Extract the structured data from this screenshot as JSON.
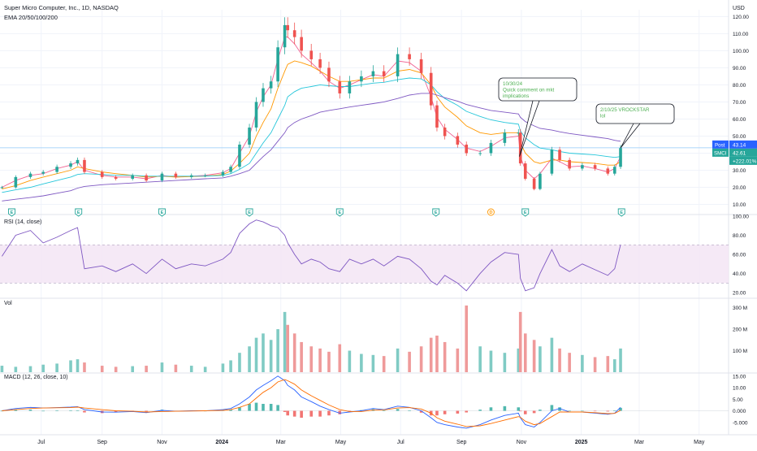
{
  "header": {
    "symbol_line": "Super Micro Computer, Inc., 1D, NASDAQ",
    "indicator_line": "EMA 20/50/100/200",
    "currency": "USD"
  },
  "price_scale": {
    "ticks": [
      10,
      20,
      30,
      40,
      50,
      60,
      70,
      80,
      90,
      100,
      110,
      120
    ],
    "tick_labels": [
      "10.00",
      "20.00",
      "30.00",
      "40.00",
      "50.00",
      "60.00",
      "70.00",
      "80.00",
      "90.00",
      "100.00",
      "110.00",
      "120.00"
    ],
    "range": [
      5,
      124
    ]
  },
  "price_badges": {
    "post_label": "Post",
    "post_value": "43.14",
    "symbol": "SMCI",
    "last_value": "42.61",
    "change_pct": "+222.01%",
    "horizontal_line_value": 43.14
  },
  "annotations": [
    {
      "date": "10/30/24",
      "text": "10/30/24\nQuick comment on mkt\nimplications",
      "anchor_date": "2024-10-30",
      "anchor_price": 38
    },
    {
      "date": "2/10/25",
      "text": "2/10/25 VROCKSTAR\nlol",
      "anchor_date": "2025-02-10",
      "anchor_price": 43
    }
  ],
  "earnings_markers": [
    {
      "date": "2023-06-01",
      "label": "E"
    },
    {
      "date": "2023-08-08",
      "label": "E"
    },
    {
      "date": "2023-11-01",
      "label": "E"
    },
    {
      "date": "2024-01-29",
      "label": "E"
    },
    {
      "date": "2024-04-30",
      "label": "E"
    },
    {
      "date": "2024-08-06",
      "label": "E"
    },
    {
      "date": "2024-10-01",
      "label": "D"
    },
    {
      "date": "2024-11-05",
      "label": "E"
    },
    {
      "date": "2025-02-11",
      "label": "E"
    }
  ],
  "chart_data": {
    "type": "line",
    "x_axis_labels": [
      "Jul",
      "Sep",
      "Nov",
      "2024",
      "Mar",
      "May",
      "Jul",
      "Sep",
      "Nov",
      "2025",
      "Mar",
      "May"
    ],
    "x_range": [
      "2023-05-20",
      "2025-05-31"
    ],
    "price_series": {
      "dates": [
        "2023-05-22",
        "2023-06-05",
        "2023-06-20",
        "2023-07-03",
        "2023-07-17",
        "2023-07-31",
        "2023-08-07",
        "2023-08-14",
        "2023-09-01",
        "2023-09-15",
        "2023-10-02",
        "2023-10-16",
        "2023-11-01",
        "2023-11-15",
        "2023-12-01",
        "2023-12-15",
        "2024-01-02",
        "2024-01-10",
        "2024-01-19",
        "2024-01-29",
        "2024-02-05",
        "2024-02-12",
        "2024-02-20",
        "2024-02-27",
        "2024-03-05",
        "2024-03-08",
        "2024-03-15",
        "2024-03-22",
        "2024-04-01",
        "2024-04-10",
        "2024-04-19",
        "2024-04-30",
        "2024-05-10",
        "2024-05-22",
        "2024-06-03",
        "2024-06-14",
        "2024-06-28",
        "2024-07-10",
        "2024-07-22",
        "2024-08-01",
        "2024-08-07",
        "2024-08-15",
        "2024-08-28",
        "2024-09-06",
        "2024-09-20",
        "2024-10-01",
        "2024-10-15",
        "2024-10-29",
        "2024-10-31",
        "2024-11-05",
        "2024-11-14",
        "2024-11-20",
        "2024-12-02",
        "2024-12-10",
        "2024-12-20",
        "2025-01-02",
        "2025-01-15",
        "2025-01-28",
        "2025-02-04",
        "2025-02-10"
      ],
      "close": [
        20,
        26,
        28,
        29,
        32,
        34,
        36,
        29,
        26,
        25,
        27,
        24,
        28,
        26,
        27,
        27,
        29,
        32,
        45,
        55,
        70,
        78,
        82,
        102,
        115,
        112,
        108,
        100,
        95,
        90,
        82,
        75,
        82,
        85,
        88,
        85,
        98,
        95,
        87,
        68,
        55,
        50,
        45,
        40,
        40,
        46,
        52,
        52,
        34,
        25,
        19,
        28,
        42,
        36,
        31,
        33,
        31,
        28,
        32,
        43
      ]
    },
    "rsi": {
      "label": "RSI (14, close)",
      "ticks": [
        20,
        40,
        60,
        80,
        100
      ],
      "tick_labels": [
        "20.00",
        "40.00",
        "60.00",
        "80.00",
        "100.00"
      ],
      "range": [
        15,
        100
      ],
      "upper_band": 70,
      "lower_band": 30,
      "values": [
        58,
        80,
        85,
        72,
        78,
        85,
        88,
        45,
        48,
        42,
        50,
        40,
        55,
        45,
        50,
        48,
        55,
        62,
        82,
        92,
        96,
        94,
        90,
        88,
        80,
        72,
        60,
        50,
        55,
        52,
        45,
        42,
        55,
        50,
        55,
        48,
        58,
        55,
        45,
        32,
        28,
        38,
        30,
        22,
        40,
        52,
        62,
        60,
        35,
        22,
        25,
        40,
        65,
        48,
        42,
        50,
        44,
        38,
        45,
        70
      ]
    },
    "volume": {
      "label": "Vol",
      "ticks": [
        100,
        200,
        300
      ],
      "tick_labels": [
        "100 M",
        "200 M",
        "300 M"
      ],
      "range": [
        0,
        340
      ],
      "values": [
        30,
        25,
        28,
        35,
        40,
        55,
        60,
        45,
        30,
        25,
        28,
        30,
        45,
        35,
        30,
        25,
        40,
        55,
        90,
        120,
        160,
        180,
        150,
        200,
        280,
        220,
        180,
        140,
        120,
        110,
        95,
        130,
        100,
        85,
        80,
        75,
        110,
        95,
        120,
        160,
        170,
        140,
        110,
        310,
        120,
        100,
        90,
        110,
        280,
        180,
        150,
        120,
        160,
        110,
        90,
        80,
        70,
        75,
        60,
        110
      ]
    },
    "macd": {
      "label": "MACD (12, 26, close, 10)",
      "ticks": [
        -5,
        0,
        5,
        10,
        15
      ],
      "tick_labels": [
        "-5.000",
        "0.000",
        "5.00",
        "10.00",
        "15.00"
      ],
      "range": [
        -10,
        16
      ],
      "macd_values": [
        0,
        1,
        1.5,
        1.2,
        1.4,
        1.6,
        1.8,
        0.5,
        -0.5,
        -0.6,
        -0.3,
        -0.8,
        0.2,
        -0.2,
        0,
        0,
        0.5,
        1,
        3,
        6,
        9,
        11,
        13,
        15,
        13,
        11,
        9,
        6,
        4,
        2,
        0.5,
        -1,
        -0.5,
        0,
        1,
        0.5,
        2,
        1.5,
        0,
        -3,
        -5,
        -6,
        -7,
        -7.5,
        -6,
        -4,
        -2,
        -1,
        -3,
        -6,
        -7,
        -5,
        0,
        1,
        -0.5,
        -0.5,
        -1,
        -1.5,
        -1,
        1.5
      ],
      "signal_values": [
        0,
        0.5,
        1,
        1.2,
        1.3,
        1.4,
        1.6,
        1.2,
        0.5,
        0,
        -0.2,
        -0.5,
        -0.3,
        -0.2,
        -0.1,
        0,
        0.2,
        0.5,
        1.5,
        3,
        5.5,
        8,
        10,
        12.5,
        13.5,
        13,
        11.5,
        9,
        6.5,
        4.5,
        2.5,
        0.5,
        -0.3,
        -0.3,
        0.3,
        0.4,
        1.2,
        1.4,
        0.8,
        -1,
        -3,
        -4.5,
        -5.8,
        -6.8,
        -6.5,
        -5.5,
        -4,
        -2.5,
        -2.8,
        -4.5,
        -6,
        -5.5,
        -2.5,
        -0.5,
        -0.5,
        -0.5,
        -0.8,
        -1.2,
        -1.1,
        0.2
      ]
    },
    "series": [
      {
        "name": "EMA 20",
        "color": "#f06292",
        "values": [
          20,
          24,
          27,
          28,
          31,
          33,
          35,
          30,
          27,
          26,
          26,
          25,
          27,
          26,
          26.5,
          27,
          28.5,
          31,
          40,
          50,
          64,
          73,
          80,
          95,
          108,
          108,
          104,
          98,
          93,
          88,
          82,
          78,
          80,
          83,
          86,
          85,
          94,
          93,
          88,
          73,
          61,
          54,
          48,
          43,
          41,
          44,
          49,
          50,
          38,
          30,
          25,
          28,
          37,
          35,
          32,
          32.5,
          31,
          29,
          31,
          38
        ]
      },
      {
        "name": "EMA 50",
        "color": "#ff9800",
        "values": [
          19,
          21,
          24,
          26,
          28,
          30,
          32,
          31,
          29,
          28,
          27,
          26,
          26.5,
          26,
          26.3,
          26.5,
          27.5,
          29.5,
          34,
          40,
          50,
          58,
          66,
          78,
          88,
          92,
          94,
          93,
          91,
          88,
          85,
          82,
          82,
          83,
          84,
          84,
          88,
          89,
          87,
          80,
          73,
          67,
          61,
          56,
          52,
          51,
          52,
          52,
          46,
          40,
          35,
          34,
          36,
          36,
          35,
          34.5,
          34,
          33,
          33,
          35
        ]
      },
      {
        "name": "EMA 100",
        "color": "#26c6da",
        "values": [
          17,
          18.5,
          20,
          22,
          24,
          26,
          27.5,
          28,
          27.5,
          27,
          27,
          26.5,
          26.5,
          26.5,
          26.5,
          26.5,
          27,
          28,
          30.5,
          34,
          40,
          46,
          52,
          60,
          68,
          73,
          76,
          78,
          79,
          80,
          79.5,
          79,
          79,
          80,
          81,
          81.5,
          83,
          84,
          83.5,
          80,
          76,
          72,
          68,
          64.5,
          61.5,
          59.5,
          58,
          57,
          53,
          49,
          45,
          43,
          42,
          41,
          40,
          39.5,
          39,
          38,
          37.5,
          38
        ]
      },
      {
        "name": "EMA 200",
        "color": "#7e57c2",
        "values": [
          12,
          13,
          14,
          15,
          16.5,
          18,
          19.5,
          20.5,
          21.5,
          22,
          22.5,
          23,
          23.5,
          24,
          24.5,
          25,
          25.5,
          26.5,
          28,
          30,
          34,
          38,
          42,
          47,
          52,
          55,
          58,
          60,
          62,
          64,
          65,
          66,
          67,
          68,
          69,
          70,
          72,
          74,
          75,
          75,
          74,
          72.5,
          70.5,
          68.5,
          66.5,
          65,
          64,
          63,
          61,
          58.5,
          56,
          54.5,
          53.5,
          52.5,
          51.5,
          50.5,
          49.5,
          48.5,
          47.5,
          47
        ]
      }
    ]
  }
}
